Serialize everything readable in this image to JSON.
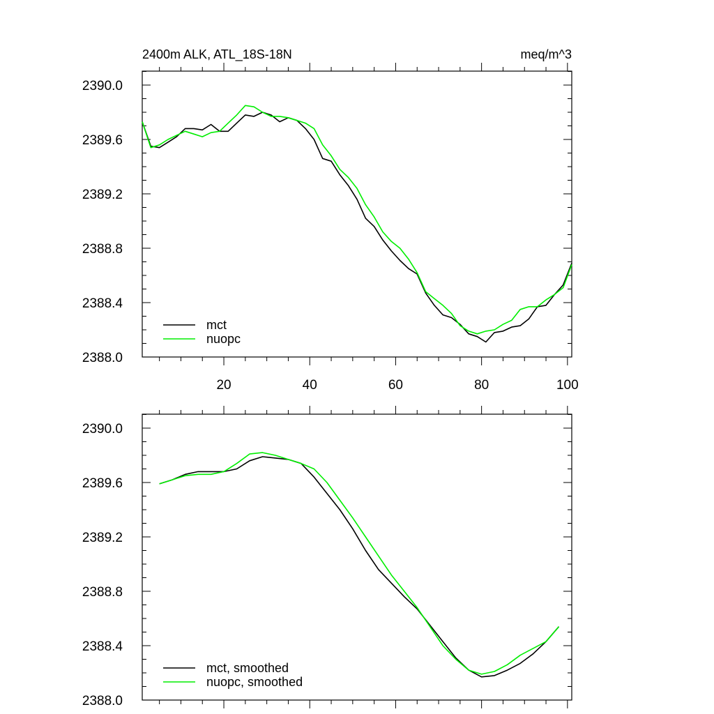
{
  "colors": {
    "mct": "#000000",
    "nuopc": "#00ee00"
  },
  "chart_data": [
    {
      "type": "line",
      "title": "2400m ALK, ATL_18S-18N",
      "units": "meq/m^3",
      "xlabel": "",
      "ylabel": "",
      "xlim": [
        1,
        101
      ],
      "ylim": [
        2388.0,
        2390.0
      ],
      "xticks": [
        20,
        40,
        60,
        80,
        100
      ],
      "xtick_labels": [
        "20",
        "40",
        "60",
        "80",
        "100"
      ],
      "yticks": [
        2388.0,
        2388.4,
        2388.8,
        2389.2,
        2389.6,
        2390.0
      ],
      "ytick_labels": [
        "2388.0",
        "2388.4",
        "2388.8",
        "2389.2",
        "2389.6",
        "2390.0"
      ],
      "legend_position": "bottom-left",
      "series": [
        {
          "name": "mct",
          "color": "#000000",
          "x": [
            1,
            3,
            5,
            7,
            9,
            11,
            13,
            15,
            17,
            19,
            21,
            23,
            25,
            27,
            29,
            31,
            33,
            35,
            37,
            39,
            41,
            43,
            45,
            47,
            49,
            51,
            53,
            55,
            57,
            59,
            61,
            63,
            65,
            67,
            69,
            71,
            73,
            75,
            77,
            79,
            81,
            83,
            85,
            87,
            89,
            91,
            93,
            95,
            97,
            99,
            101
          ],
          "y": [
            2389.73,
            2389.55,
            2389.54,
            2389.58,
            2389.62,
            2389.68,
            2389.68,
            2389.67,
            2389.71,
            2389.66,
            2389.66,
            2389.72,
            2389.78,
            2389.77,
            2389.8,
            2389.78,
            2389.73,
            2389.76,
            2389.74,
            2389.68,
            2389.6,
            2389.46,
            2389.44,
            2389.34,
            2389.26,
            2389.16,
            2389.02,
            2388.96,
            2388.86,
            2388.78,
            2388.71,
            2388.65,
            2388.61,
            2388.47,
            2388.38,
            2388.31,
            2388.29,
            2388.24,
            2388.17,
            2388.15,
            2388.11,
            2388.18,
            2388.19,
            2388.22,
            2388.23,
            2388.28,
            2388.37,
            2388.38,
            2388.46,
            2388.53,
            2388.69
          ]
        },
        {
          "name": "nuopc",
          "color": "#00ee00",
          "x": [
            1,
            3,
            5,
            7,
            9,
            11,
            13,
            15,
            17,
            19,
            21,
            23,
            25,
            27,
            29,
            31,
            33,
            35,
            37,
            39,
            41,
            43,
            45,
            47,
            49,
            51,
            53,
            55,
            57,
            59,
            61,
            63,
            65,
            67,
            69,
            71,
            73,
            75,
            77,
            79,
            81,
            83,
            85,
            87,
            89,
            91,
            93,
            95,
            97,
            99,
            101
          ],
          "y": [
            2389.73,
            2389.54,
            2389.56,
            2389.6,
            2389.63,
            2389.66,
            2389.64,
            2389.62,
            2389.65,
            2389.66,
            2389.72,
            2389.78,
            2389.85,
            2389.84,
            2389.8,
            2389.77,
            2389.77,
            2389.76,
            2389.74,
            2389.72,
            2389.68,
            2389.56,
            2389.48,
            2389.38,
            2389.32,
            2389.24,
            2389.12,
            2389.03,
            2388.92,
            2388.85,
            2388.8,
            2388.72,
            2388.62,
            2388.48,
            2388.43,
            2388.38,
            2388.32,
            2388.23,
            2388.19,
            2388.17,
            2388.19,
            2388.2,
            2388.24,
            2388.27,
            2388.35,
            2388.37,
            2388.37,
            2388.42,
            2388.46,
            2388.51,
            2388.68
          ]
        }
      ]
    },
    {
      "type": "line",
      "title": "",
      "xlabel": "",
      "ylabel": "",
      "xlim": [
        1,
        101
      ],
      "ylim": [
        2388.0,
        2390.0
      ],
      "xticks": [
        20,
        40,
        60,
        80,
        100
      ],
      "xtick_labels": [],
      "yticks": [
        2388.0,
        2388.4,
        2388.8,
        2389.2,
        2389.6,
        2390.0
      ],
      "ytick_labels": [
        "2388.0",
        "2388.4",
        "2388.8",
        "2389.2",
        "2389.6",
        "2390.0"
      ],
      "legend_position": "bottom-left",
      "series": [
        {
          "name": "mct, smoothed",
          "color": "#000000",
          "x": [
            5,
            8,
            11,
            14,
            17,
            20,
            23,
            26,
            29,
            32,
            35,
            38,
            41,
            44,
            47,
            50,
            53,
            56,
            59,
            62,
            65,
            68,
            71,
            74,
            77,
            80,
            83,
            86,
            89,
            92,
            95,
            98
          ],
          "y": [
            2389.59,
            2389.62,
            2389.66,
            2389.68,
            2389.68,
            2389.68,
            2389.7,
            2389.76,
            2389.79,
            2389.78,
            2389.77,
            2389.74,
            2389.64,
            2389.52,
            2389.4,
            2389.26,
            2389.1,
            2388.96,
            2388.86,
            2388.76,
            2388.67,
            2388.55,
            2388.43,
            2388.31,
            2388.22,
            2388.17,
            2388.18,
            2388.22,
            2388.27,
            2388.34,
            2388.43,
            2388.54
          ]
        },
        {
          "name": "nuopc, smoothed",
          "color": "#00ee00",
          "x": [
            5,
            8,
            11,
            14,
            17,
            20,
            23,
            26,
            29,
            32,
            35,
            38,
            41,
            44,
            47,
            50,
            53,
            56,
            59,
            62,
            65,
            68,
            71,
            74,
            77,
            80,
            83,
            86,
            89,
            92,
            95,
            98
          ],
          "y": [
            2389.59,
            2389.62,
            2389.65,
            2389.66,
            2389.66,
            2389.68,
            2389.74,
            2389.81,
            2389.82,
            2389.8,
            2389.77,
            2389.74,
            2389.7,
            2389.6,
            2389.47,
            2389.34,
            2389.2,
            2389.06,
            2388.92,
            2388.8,
            2388.68,
            2388.54,
            2388.4,
            2388.3,
            2388.22,
            2388.19,
            2388.21,
            2388.26,
            2388.33,
            2388.38,
            2388.43,
            2388.54
          ]
        }
      ]
    }
  ]
}
